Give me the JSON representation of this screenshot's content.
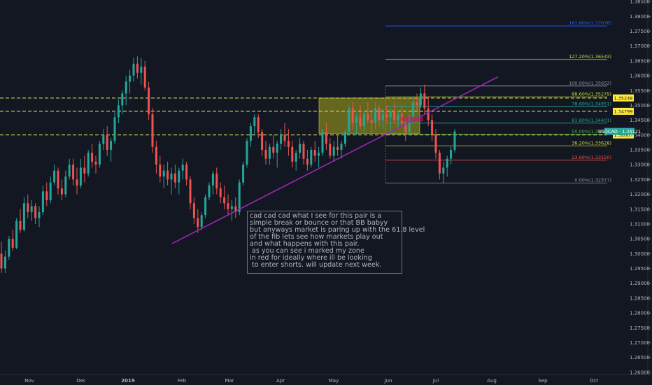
{
  "chart_data": {
    "type": "candlestick",
    "symbol": "USDCAD",
    "last_price": "1.34121",
    "y_axis": {
      "range": [
        1.2595,
        1.3855
      ],
      "ticks": [
        "1.38500",
        "1.38000",
        "1.37500",
        "1.37000",
        "1.36500",
        "1.36000",
        "1.35500",
        "1.35000",
        "1.34500",
        "1.34000",
        "1.33500",
        "1.33000",
        "1.32500",
        "1.32000",
        "1.31500",
        "1.31000",
        "1.30500",
        "1.30000",
        "1.29500",
        "1.29000",
        "1.28500",
        "1.28000",
        "1.27500",
        "1.27000",
        "1.26500",
        "1.26000"
      ]
    },
    "x_axis": {
      "ticks": [
        "Nov",
        "Dec",
        "2019",
        "Feb",
        "Mar",
        "Apr",
        "May",
        "Jun",
        "Jul",
        "Aug",
        "Sep",
        "Oct"
      ]
    },
    "fib_levels": [
      {
        "label": "161.80%(1.37676)",
        "value": 1.37676,
        "color": "#2962ff"
      },
      {
        "label": "127.20%(1.36543)",
        "value": 1.36543,
        "color": "#cddc39"
      },
      {
        "label": "100.00%(1.35652)",
        "value": 1.35652,
        "color": "#9598a1"
      },
      {
        "label": "88.60%(1.35279)",
        "value": 1.35279,
        "color": "#cddc39"
      },
      {
        "label": "78.60%(1.34951)",
        "value": 1.34951,
        "color": "#26a69a"
      },
      {
        "label": "61.80%(1.34401)",
        "value": 1.34401,
        "color": "#26a69a"
      },
      {
        "label": "50.00%(1.34015)",
        "value": 1.34015,
        "color": "#4caf50"
      },
      {
        "label": "38.20%(1.33628)",
        "value": 1.33628,
        "color": "#cddc39"
      },
      {
        "label": "23.60%(1.33150)",
        "value": 1.3315,
        "color": "#ef5350"
      },
      {
        "label": "0.00%(1.32377)",
        "value": 1.32377,
        "color": "#9598a1"
      }
    ],
    "horizontal_lines": [
      {
        "value": 1.35248,
        "label": "1.35248"
      },
      {
        "value": 1.34799,
        "label": "1.34799"
      },
      {
        "value": 1.34001,
        "label": "1.34001"
      }
    ],
    "zone": {
      "top": 1.35248,
      "bottom": 1.3405
    },
    "trendline": {
      "start": 1.3034,
      "end": 1.3596
    },
    "ohlc": [
      [
        1.3,
        1.304,
        1.2935,
        1.295
      ],
      [
        1.295,
        1.301,
        1.2935,
        1.299
      ],
      [
        1.299,
        1.306,
        1.298,
        1.305
      ],
      [
        1.305,
        1.308,
        1.301,
        1.302
      ],
      [
        1.302,
        1.312,
        1.3015,
        1.311
      ],
      [
        1.311,
        1.315,
        1.307,
        1.308
      ],
      [
        1.308,
        1.319,
        1.3075,
        1.317
      ],
      [
        1.317,
        1.32,
        1.312,
        1.314
      ],
      [
        1.314,
        1.318,
        1.311,
        1.316
      ],
      [
        1.316,
        1.317,
        1.31,
        1.312
      ],
      [
        1.312,
        1.316,
        1.309,
        1.314
      ],
      [
        1.314,
        1.323,
        1.313,
        1.321
      ],
      [
        1.321,
        1.324,
        1.316,
        1.318
      ],
      [
        1.318,
        1.326,
        1.317,
        1.324
      ],
      [
        1.324,
        1.33,
        1.323,
        1.328
      ],
      [
        1.328,
        1.329,
        1.32,
        1.322
      ],
      [
        1.322,
        1.325,
        1.318,
        1.32
      ],
      [
        1.32,
        1.328,
        1.319,
        1.326
      ],
      [
        1.326,
        1.332,
        1.325,
        1.33
      ],
      [
        1.33,
        1.332,
        1.323,
        1.325
      ],
      [
        1.325,
        1.329,
        1.32,
        1.323
      ],
      [
        1.323,
        1.332,
        1.322,
        1.329
      ],
      [
        1.329,
        1.333,
        1.324,
        1.327
      ],
      [
        1.327,
        1.335,
        1.326,
        1.334
      ],
      [
        1.334,
        1.337,
        1.329,
        1.331
      ],
      [
        1.331,
        1.333,
        1.327,
        1.33
      ],
      [
        1.33,
        1.338,
        1.329,
        1.337
      ],
      [
        1.337,
        1.342,
        1.335,
        1.34
      ],
      [
        1.34,
        1.343,
        1.333,
        1.335
      ],
      [
        1.335,
        1.339,
        1.331,
        1.338
      ],
      [
        1.338,
        1.348,
        1.337,
        1.346
      ],
      [
        1.346,
        1.352,
        1.344,
        1.35
      ],
      [
        1.35,
        1.355,
        1.347,
        1.354
      ],
      [
        1.354,
        1.36,
        1.35,
        1.358
      ],
      [
        1.358,
        1.362,
        1.354,
        1.36
      ],
      [
        1.36,
        1.366,
        1.358,
        1.364
      ],
      [
        1.364,
        1.3665,
        1.359,
        1.361
      ],
      [
        1.361,
        1.366,
        1.357,
        1.363
      ],
      [
        1.363,
        1.365,
        1.355,
        1.356
      ],
      [
        1.356,
        1.358,
        1.345,
        1.347
      ],
      [
        1.347,
        1.349,
        1.334,
        1.336
      ],
      [
        1.336,
        1.338,
        1.327,
        1.33
      ],
      [
        1.33,
        1.333,
        1.324,
        1.326
      ],
      [
        1.326,
        1.33,
        1.322,
        1.328
      ],
      [
        1.328,
        1.331,
        1.323,
        1.325
      ],
      [
        1.325,
        1.329,
        1.32,
        1.327
      ],
      [
        1.327,
        1.33,
        1.322,
        1.324
      ],
      [
        1.324,
        1.329,
        1.32,
        1.328
      ],
      [
        1.328,
        1.332,
        1.325,
        1.33
      ],
      [
        1.33,
        1.331,
        1.323,
        1.325
      ],
      [
        1.325,
        1.326,
        1.315,
        1.317
      ],
      [
        1.317,
        1.319,
        1.31,
        1.312
      ],
      [
        1.312,
        1.315,
        1.307,
        1.309
      ],
      [
        1.309,
        1.314,
        1.308,
        1.313
      ],
      [
        1.313,
        1.32,
        1.312,
        1.319
      ],
      [
        1.319,
        1.324,
        1.318,
        1.323
      ],
      [
        1.323,
        1.328,
        1.32,
        1.327
      ],
      [
        1.327,
        1.329,
        1.32,
        1.322
      ],
      [
        1.322,
        1.324,
        1.317,
        1.319
      ],
      [
        1.319,
        1.323,
        1.315,
        1.317
      ],
      [
        1.317,
        1.32,
        1.313,
        1.315
      ],
      [
        1.315,
        1.318,
        1.311,
        1.316
      ],
      [
        1.316,
        1.319,
        1.312,
        1.314
      ],
      [
        1.314,
        1.325,
        1.313,
        1.324
      ],
      [
        1.324,
        1.331,
        1.323,
        1.33
      ],
      [
        1.33,
        1.339,
        1.329,
        1.338
      ],
      [
        1.338,
        1.344,
        1.336,
        1.343
      ],
      [
        1.343,
        1.347,
        1.34,
        1.346
      ],
      [
        1.346,
        1.347,
        1.339,
        1.341
      ],
      [
        1.341,
        1.342,
        1.333,
        1.335
      ],
      [
        1.335,
        1.338,
        1.33,
        1.332
      ],
      [
        1.332,
        1.337,
        1.33,
        1.336
      ],
      [
        1.336,
        1.34,
        1.332,
        1.334
      ],
      [
        1.334,
        1.338,
        1.329,
        1.337
      ],
      [
        1.337,
        1.342,
        1.335,
        1.34
      ],
      [
        1.34,
        1.344,
        1.336,
        1.338
      ],
      [
        1.338,
        1.342,
        1.333,
        1.336
      ],
      [
        1.336,
        1.338,
        1.329,
        1.331
      ],
      [
        1.331,
        1.335,
        1.328,
        1.334
      ],
      [
        1.334,
        1.339,
        1.332,
        1.337
      ],
      [
        1.337,
        1.338,
        1.33,
        1.332
      ],
      [
        1.332,
        1.335,
        1.328,
        1.33
      ],
      [
        1.33,
        1.336,
        1.329,
        1.335
      ],
      [
        1.335,
        1.338,
        1.331,
        1.333
      ],
      [
        1.333,
        1.336,
        1.329,
        1.334
      ],
      [
        1.334,
        1.342,
        1.333,
        1.341
      ],
      [
        1.341,
        1.344,
        1.335,
        1.337
      ],
      [
        1.337,
        1.339,
        1.332,
        1.333
      ],
      [
        1.333,
        1.338,
        1.331,
        1.336
      ],
      [
        1.336,
        1.34,
        1.333,
        1.335
      ],
      [
        1.335,
        1.338,
        1.332,
        1.337
      ],
      [
        1.337,
        1.342,
        1.336,
        1.341
      ],
      [
        1.341,
        1.35,
        1.34,
        1.349
      ],
      [
        1.349,
        1.351,
        1.342,
        1.344
      ],
      [
        1.344,
        1.347,
        1.34,
        1.346
      ],
      [
        1.346,
        1.35,
        1.342,
        1.343
      ],
      [
        1.343,
        1.348,
        1.341,
        1.347
      ],
      [
        1.347,
        1.351,
        1.344,
        1.345
      ],
      [
        1.345,
        1.348,
        1.341,
        1.344
      ],
      [
        1.344,
        1.351,
        1.342,
        1.349
      ],
      [
        1.349,
        1.35,
        1.343,
        1.345
      ],
      [
        1.345,
        1.349,
        1.342,
        1.347
      ],
      [
        1.347,
        1.35,
        1.344,
        1.346
      ],
      [
        1.346,
        1.349,
        1.341,
        1.348
      ],
      [
        1.348,
        1.351,
        1.344,
        1.345
      ],
      [
        1.345,
        1.348,
        1.342,
        1.347
      ],
      [
        1.347,
        1.35,
        1.343,
        1.344
      ],
      [
        1.344,
        1.346,
        1.338,
        1.341
      ],
      [
        1.341,
        1.347,
        1.34,
        1.346
      ],
      [
        1.346,
        1.353,
        1.345,
        1.351
      ],
      [
        1.351,
        1.354,
        1.348,
        1.35
      ],
      [
        1.35,
        1.356,
        1.349,
        1.354
      ],
      [
        1.354,
        1.357,
        1.347,
        1.349
      ],
      [
        1.349,
        1.353,
        1.343,
        1.345
      ],
      [
        1.345,
        1.347,
        1.338,
        1.34
      ],
      [
        1.34,
        1.342,
        1.332,
        1.334
      ],
      [
        1.334,
        1.335,
        1.325,
        1.327
      ],
      [
        1.327,
        1.331,
        1.3238,
        1.329
      ],
      [
        1.329,
        1.333,
        1.326,
        1.332
      ],
      [
        1.332,
        1.336,
        1.33,
        1.335
      ],
      [
        1.335,
        1.342,
        1.334,
        1.3412
      ]
    ],
    "grid": false,
    "legend": "none"
  },
  "annotation": {
    "lines": [
      "cad cad cad what I see for this pair is a",
      "simple break or bounce or that BB babyy",
      "but anyways market is paring up with the 61.8 level",
      "of the fib lets see how markets play out",
      "and what happens with this pair.",
      " as you can see i marked my zone",
      "in red for ideally where ill be looking",
      " to enter shorts. will update next week."
    ]
  },
  "colors": {
    "background": "#131722",
    "up": "#26a69a",
    "down": "#ef5350",
    "trendline": "#9c27b0",
    "dashed": "#d4e157",
    "zone": "#8a8a1e",
    "price_tag": "#ffeb3b",
    "current_tag": "#26a69a"
  }
}
